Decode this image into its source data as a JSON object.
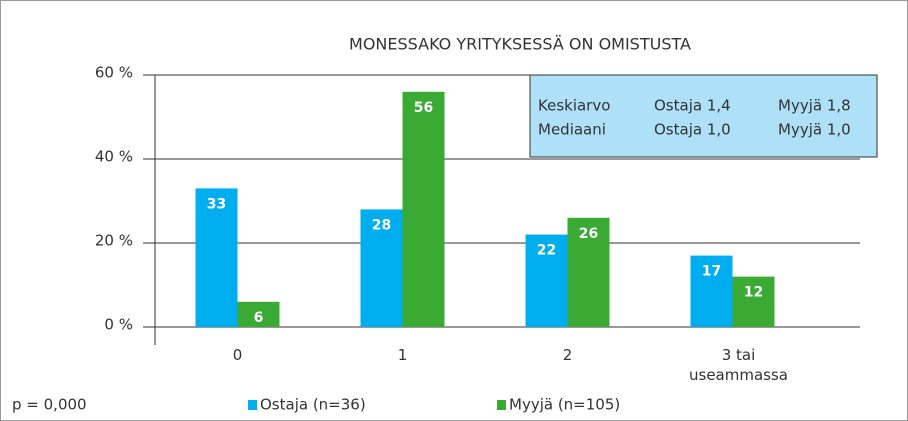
{
  "chart_data": {
    "type": "bar",
    "title": "MONESSAKO YRITYKSESSÄ ON OMISTUSTA",
    "categories": [
      "0",
      "1",
      "2",
      "3 tai useammassa"
    ],
    "series": [
      {
        "name": "Ostaja (n=36)",
        "color": "#00aeef",
        "values": [
          33,
          28,
          22,
          17
        ]
      },
      {
        "name": "Myyjä (n=105)",
        "color": "#3aaa35",
        "values": [
          6,
          56,
          26,
          12
        ]
      }
    ],
    "ylim": [
      0,
      60
    ],
    "yticks": [
      {
        "value": 0,
        "label": "0 %"
      },
      {
        "value": 20,
        "label": "20 %"
      },
      {
        "value": 40,
        "label": "40 %"
      },
      {
        "value": 60,
        "label": "60 %"
      }
    ],
    "grid": true,
    "annotation_box": [
      [
        "Keskiarvo",
        "Ostaja 1,4",
        "Myyjä 1,8"
      ],
      [
        "Mediaani",
        "Ostaja 1,0",
        "Myyjä 1,0"
      ]
    ],
    "note": "p = 0,000"
  }
}
